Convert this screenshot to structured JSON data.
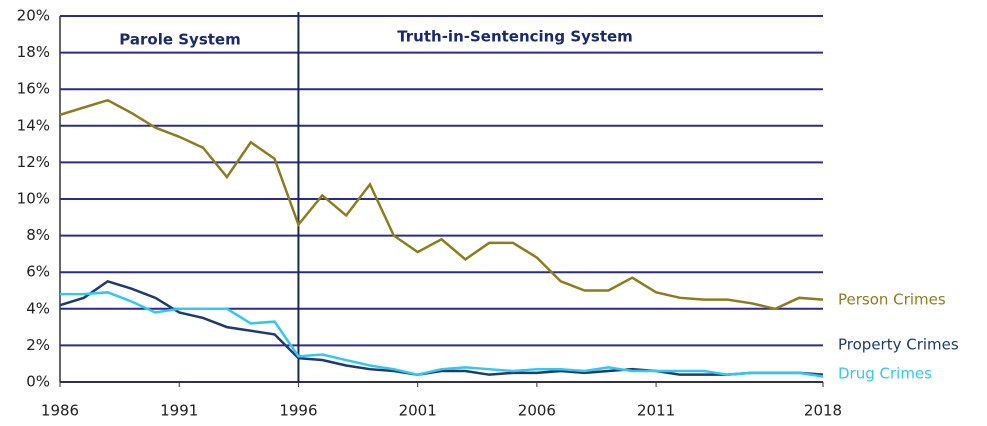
{
  "chart_data": {
    "type": "line",
    "annotations": [
      "Parole System",
      "Truth-in-Sentencing System"
    ],
    "reference_line_x": 1996,
    "x": [
      1986,
      1987,
      1988,
      1989,
      1990,
      1991,
      1992,
      1993,
      1994,
      1995,
      1996,
      1997,
      1998,
      1999,
      2000,
      2001,
      2002,
      2003,
      2004,
      2005,
      2006,
      2007,
      2008,
      2009,
      2010,
      2011,
      2012,
      2013,
      2014,
      2015,
      2016,
      2017,
      2018
    ],
    "series": [
      {
        "name": "Person Crimes",
        "color": "#8b7d1e",
        "values": [
          14.6,
          15.0,
          15.4,
          14.7,
          13.9,
          13.4,
          12.8,
          11.2,
          13.1,
          12.2,
          8.6,
          10.2,
          9.1,
          10.8,
          8.0,
          7.1,
          7.8,
          6.7,
          7.6,
          7.6,
          6.8,
          5.5,
          5.0,
          5.0,
          5.7,
          4.9,
          4.6,
          4.5,
          4.5,
          4.3,
          4.0,
          4.6,
          4.5
        ]
      },
      {
        "name": "Property Crimes",
        "color": "#1f3a6e",
        "values": [
          4.2,
          4.6,
          5.5,
          5.1,
          4.6,
          3.8,
          3.5,
          3.0,
          2.8,
          2.6,
          1.3,
          1.2,
          0.9,
          0.7,
          0.6,
          0.4,
          0.6,
          0.6,
          0.4,
          0.5,
          0.5,
          0.6,
          0.5,
          0.6,
          0.7,
          0.6,
          0.4,
          0.4,
          0.4,
          0.5,
          0.5,
          0.5,
          0.4
        ]
      },
      {
        "name": "Drug Crimes",
        "color": "#33c8f0",
        "values": [
          4.8,
          4.8,
          4.9,
          4.4,
          3.8,
          4.0,
          4.0,
          4.0,
          3.2,
          3.3,
          1.4,
          1.5,
          1.2,
          0.9,
          0.7,
          0.4,
          0.7,
          0.8,
          0.7,
          0.6,
          0.7,
          0.7,
          0.6,
          0.8,
          0.6,
          0.6,
          0.6,
          0.6,
          0.4,
          0.5,
          0.5,
          0.5,
          0.3
        ]
      }
    ],
    "xlim": [
      1986,
      2018
    ],
    "xticks": [
      1986,
      1991,
      1996,
      2001,
      2006,
      2011,
      2018
    ],
    "ylim": [
      0,
      20
    ],
    "yticks": [
      {
        "value": 0,
        "label": "0%"
      },
      {
        "value": 2,
        "label": "2%"
      },
      {
        "value": 4,
        "label": "4%"
      },
      {
        "value": 6,
        "label": "6%"
      },
      {
        "value": 8,
        "label": "8%"
      },
      {
        "value": 10,
        "label": "10%"
      },
      {
        "value": 12,
        "label": "12%"
      },
      {
        "value": 14,
        "label": "14%"
      },
      {
        "value": 16,
        "label": "16%"
      },
      {
        "value": 18,
        "label": "18%"
      },
      {
        "value": 20,
        "label": "20%"
      }
    ],
    "grid": true,
    "grid_color": "#2b2b8f"
  }
}
